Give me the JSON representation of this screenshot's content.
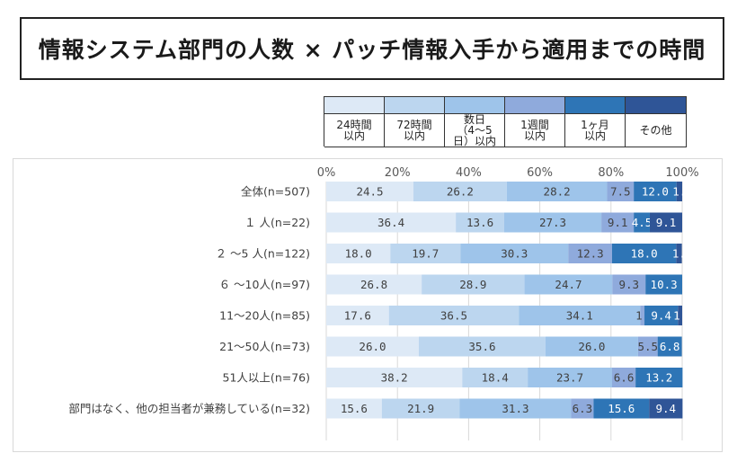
{
  "title": "情報システム部門の人数 × パッチ情報入手から適用までの時間",
  "colors": [
    "#dde9f6",
    "#bcd6ef",
    "#9ec4ea",
    "#8faadc",
    "#2e75b6",
    "#2f5597"
  ],
  "legend": [
    {
      "label": "24時間\n以内"
    },
    {
      "label": "72時間\n以内"
    },
    {
      "label": "数日\n（4～5\n日）以内"
    },
    {
      "label": "1週間\n以内"
    },
    {
      "label": "1ヶ月\n以内"
    },
    {
      "label": "その他"
    }
  ],
  "chart_data": {
    "type": "bar",
    "orientation": "horizontal",
    "stacked": true,
    "xlim": [
      0,
      100
    ],
    "xticks": [
      "0%",
      "20%",
      "40%",
      "60%",
      "80%",
      "100%"
    ],
    "categories": [
      "全体(n=507)",
      "１ 人(n=22)",
      "２ ～5 人(n=122)",
      "６ ～10人(n=97)",
      "11～20人(n=85)",
      "21～50人(n=73)",
      "51人以上(n=76)",
      "部門はなく、他の担当者が兼務している(n=32)"
    ],
    "series": [
      {
        "name": "24時間以内",
        "values": [
          24.5,
          36.4,
          18.0,
          26.8,
          17.6,
          26.0,
          38.2,
          15.6
        ]
      },
      {
        "name": "72時間以内",
        "values": [
          26.2,
          13.6,
          19.7,
          28.9,
          36.5,
          35.6,
          18.4,
          21.9
        ]
      },
      {
        "name": "数日（4～5日）以内",
        "values": [
          28.2,
          27.3,
          30.3,
          24.7,
          34.1,
          26.0,
          23.7,
          31.3
        ]
      },
      {
        "name": "1週間以内",
        "values": [
          7.5,
          9.1,
          12.3,
          9.3,
          1.2,
          5.5,
          6.6,
          6.3
        ]
      },
      {
        "name": "1ヶ月以内",
        "values": [
          12.0,
          4.5,
          18.0,
          10.3,
          9.4,
          6.8,
          13.2,
          15.6
        ]
      },
      {
        "name": "その他",
        "values": [
          1.6,
          9.1,
          1.6,
          0.0,
          1.2,
          0.0,
          0.0,
          9.4
        ]
      }
    ],
    "data_labels": [
      [
        "24.5",
        "26.2",
        "28.2",
        "7.5",
        "12.0",
        "1."
      ],
      [
        "36.4",
        "13.6",
        "27.3",
        "9.1",
        "4.5",
        "9.1"
      ],
      [
        "18.0",
        "19.7",
        "30.3",
        "12.3",
        "18.0",
        "1."
      ],
      [
        "26.8",
        "28.9",
        "24.7",
        "9.3",
        "10.3",
        ""
      ],
      [
        "17.6",
        "36.5",
        "34.1",
        "1.",
        "9.4",
        "1."
      ],
      [
        "26.0",
        "35.6",
        "26.0",
        "5.5",
        "6.8",
        ""
      ],
      [
        "38.2",
        "18.4",
        "23.7",
        "6.6",
        "13.2",
        ""
      ],
      [
        "15.6",
        "21.9",
        "31.3",
        "6.3",
        "15.6",
        "9.4"
      ]
    ],
    "grid": true,
    "legend_position": "top"
  }
}
